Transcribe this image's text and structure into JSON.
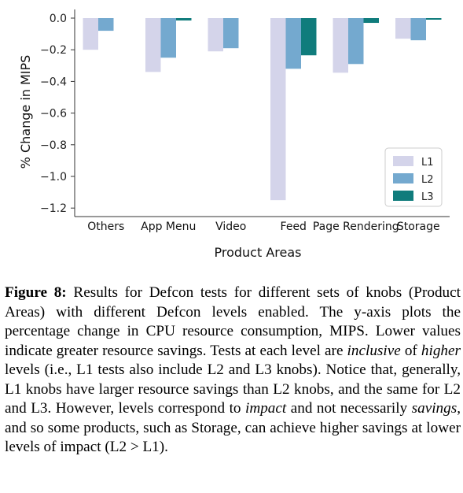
{
  "chart_data": {
    "type": "bar",
    "xlabel": "Product Areas",
    "ylabel": "% Change in MIPS",
    "ylim": [
      -1.25,
      0.05
    ],
    "yticks": [
      "0.0",
      "−0.2",
      "−0.4",
      "−0.6",
      "−0.8",
      "−1.0",
      "−1.2"
    ],
    "ytick_values": [
      0.0,
      -0.2,
      -0.4,
      -0.6,
      -0.8,
      -1.0,
      -1.2
    ],
    "categories": [
      "Others",
      "App Menu",
      "Video",
      "Feed",
      "Page Rendering",
      "Storage"
    ],
    "series": [
      {
        "name": "L1",
        "color": "#d4d4ea",
        "values": [
          -0.2,
          -0.34,
          -0.21,
          -1.15,
          -0.345,
          -0.13
        ]
      },
      {
        "name": "L2",
        "color": "#74a9cf",
        "values": [
          -0.08,
          -0.25,
          -0.19,
          -0.32,
          -0.29,
          -0.14
        ]
      },
      {
        "name": "L3",
        "color": "#107c7c",
        "values": [
          0.0,
          -0.015,
          0.0,
          -0.235,
          -0.03,
          -0.01
        ]
      }
    ],
    "legend_position": "bottom-right",
    "grid": false
  },
  "caption": {
    "label": "Figure 8:",
    "s1": " Results for Defcon tests for different sets of knobs (Product Areas) with different Defcon levels enabled. The y-axis plots the percentage change in CPU resource consumption, MIPS. Lower values indicate greater resource savings. Tests at each level are ",
    "em1": "inclusive",
    "s2": " of ",
    "em2": "higher",
    "s3": " levels (i.e., L1 tests also include L2 and L3 knobs). Notice that, generally, L1 knobs have larger resource savings than L2 knobs, and the same for L2 and L3. However, levels correspond to ",
    "em3": "impact",
    "s4": " and not necessarily ",
    "em4": "savings",
    "s5": ", and so some products, such as Storage, can achieve higher savings at lower levels of impact (L2 > L1)."
  }
}
